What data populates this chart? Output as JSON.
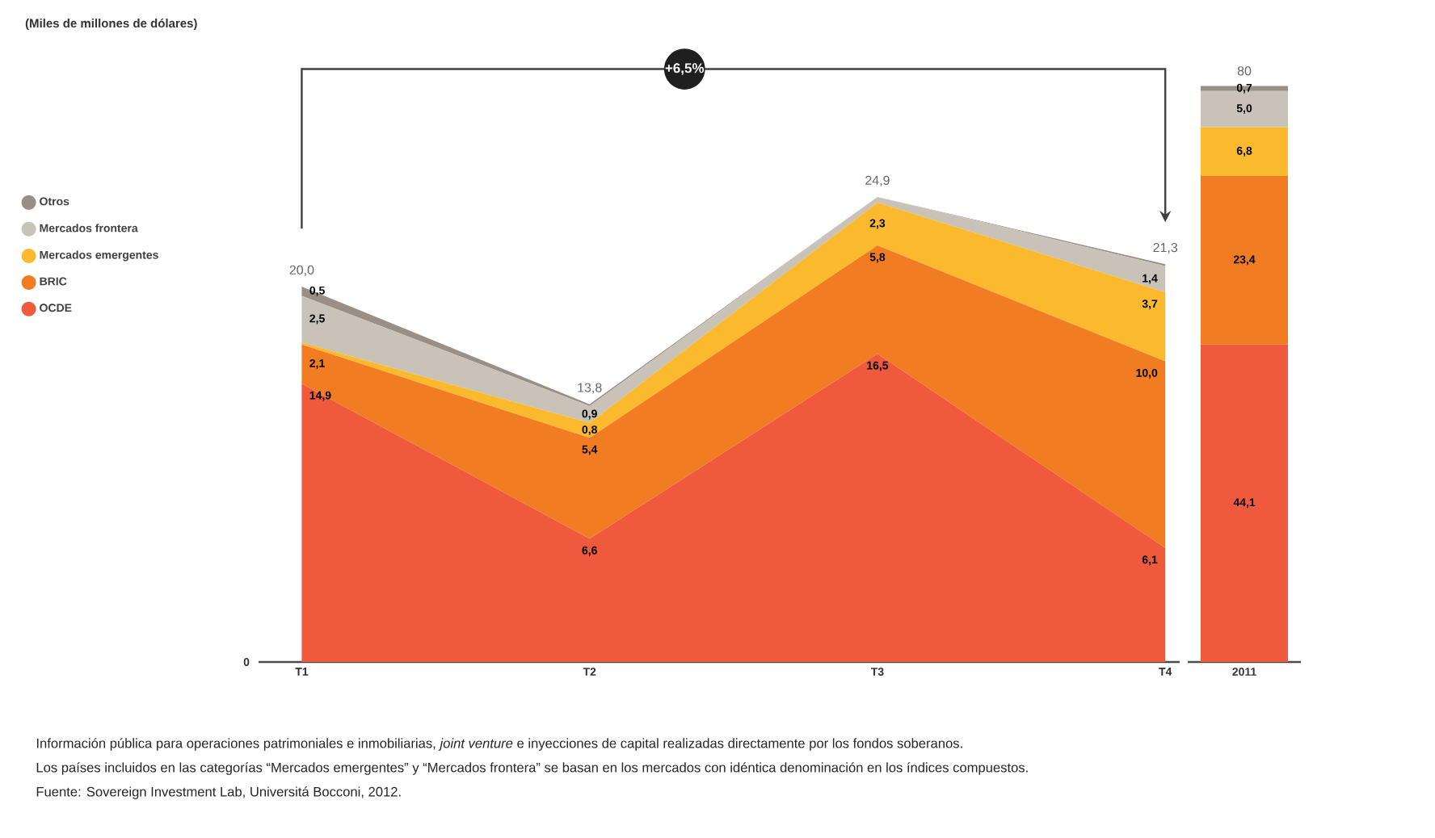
{
  "chart_data": [
    {
      "type": "area",
      "stacked": true,
      "title": "(Miles de millones de dólares)",
      "categories": [
        "T1",
        "T2",
        "T3",
        "T4"
      ],
      "series": [
        {
          "name": "OCDE",
          "color": "#ef593c",
          "values": [
            14.9,
            6.6,
            16.5,
            6.1
          ],
          "value_labels": [
            "14,9",
            "6,6",
            "16,5",
            "6,1"
          ]
        },
        {
          "name": "BRIC",
          "color": "#f27c21",
          "values": [
            2.1,
            5.4,
            5.8,
            10.0
          ],
          "value_labels": [
            "2,1",
            "5,4",
            "5,8",
            "10,0"
          ]
        },
        {
          "name": "Mercados emergentes",
          "color": "#fbb92e",
          "values": [
            0.1,
            0.8,
            2.3,
            3.7
          ],
          "value_labels": [
            null,
            "0,8",
            "2,3",
            "3,7"
          ]
        },
        {
          "name": "Mercados frontera",
          "color": "#c8c2b8",
          "values": [
            2.5,
            0.9,
            0.3,
            1.4
          ],
          "value_labels": [
            "2,5",
            "0,9",
            null,
            "1,4"
          ]
        },
        {
          "name": "Otros",
          "color": "#9a8f86",
          "values": [
            0.5,
            0.1,
            0.0,
            0.1
          ],
          "value_labels": [
            "0,5",
            null,
            null,
            null
          ]
        }
      ],
      "totals": [
        "20,0",
        "13,8",
        "24,9",
        "21,3"
      ],
      "legend": "left",
      "annotations": [
        "+6,5%",
        "0",
        "Información pública para operaciones patrimoniales e inmobiliarias, *joint venture* e inyecciones de capital realizadas directamente por los fondos soberanos.",
        "Los países incluidos en las categorías “Mercados emergentes” y “Mercados frontera” se basan en los mercados con idéntica denominación en los índices compuestos.",
        "Fuente: Sovereign Investment Lab, Universitá Bocconi, 2012."
      ]
    },
    {
      "type": "bar",
      "stacked": true,
      "categories": [
        "2011"
      ],
      "series": [
        {
          "color": "#ef593c",
          "values": [
            44.1
          ],
          "value_labels": [
            "44,1"
          ]
        },
        {
          "color": "#f27c21",
          "values": [
            23.4
          ],
          "value_labels": [
            "23,4"
          ]
        },
        {
          "color": "#fbb92e",
          "values": [
            6.8
          ],
          "value_labels": [
            "6,8"
          ]
        },
        {
          "color": "#c8c2b8",
          "values": [
            5.0
          ],
          "value_labels": [
            "5,0"
          ]
        },
        {
          "color": "#9a8f86",
          "values": [
            0.7
          ],
          "value_labels": [
            "0,7"
          ]
        }
      ],
      "totals": [
        "80"
      ]
    }
  ]
}
